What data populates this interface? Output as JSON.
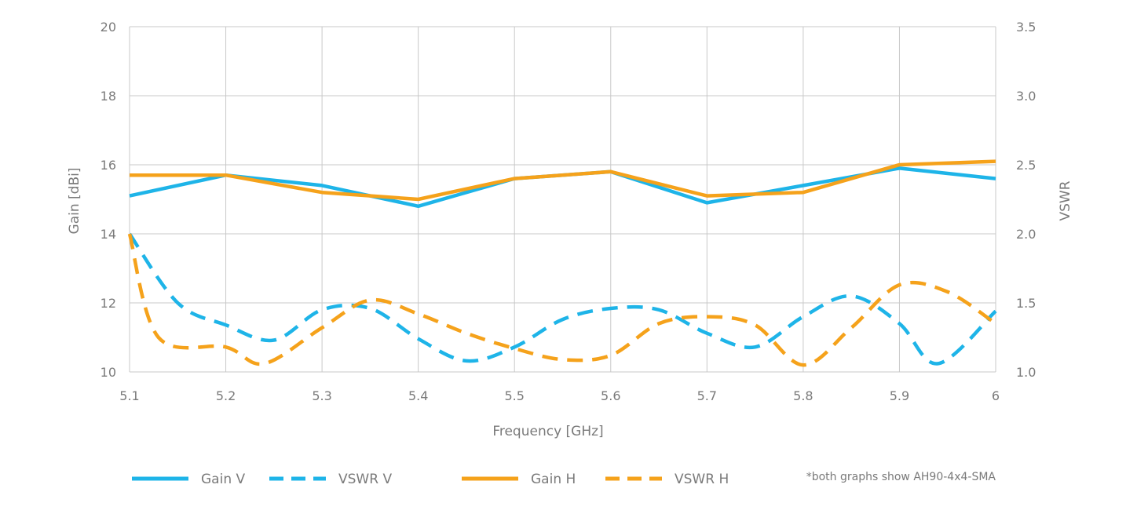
{
  "chart_data": {
    "type": "line",
    "x_ticks": [
      "5.1",
      "5.2",
      "5.3",
      "5.4",
      "5.5",
      "5.6",
      "5.7",
      "5.8",
      "5.9",
      "6"
    ],
    "xlim": [
      5.1,
      6.0
    ],
    "ylim_left": [
      10,
      20
    ],
    "ylim_right": [
      1.0,
      3.5
    ],
    "y_ticks_left": [
      "10",
      "12",
      "14",
      "16",
      "18",
      "20"
    ],
    "y_ticks_right": [
      "1.0",
      "1.5",
      "2.0",
      "2.5",
      "3.0",
      "3.5"
    ],
    "xlabel": "Frequency [GHz]",
    "ylabel_left": "Gain [dBi]",
    "ylabel_right": "VSWR",
    "grid": true,
    "legend_position": "bottom",
    "note": "*both graphs show AH90-4x4-SMA",
    "colors": {
      "blue": "#1eb4e8",
      "orange": "#f5a21b"
    },
    "series": [
      {
        "name": "Gain V",
        "axis": "left",
        "style": "solid",
        "color": "#1eb4e8",
        "x": [
          5.1,
          5.2,
          5.3,
          5.4,
          5.5,
          5.6,
          5.7,
          5.8,
          5.9,
          6.0
        ],
        "y": [
          15.1,
          15.7,
          15.4,
          14.8,
          15.6,
          15.8,
          14.9,
          15.4,
          15.9,
          15.6
        ]
      },
      {
        "name": "VSWR V",
        "axis": "right",
        "style": "dashed",
        "color": "#1eb4e8",
        "x": [
          5.1,
          5.15,
          5.2,
          5.25,
          5.3,
          5.35,
          5.4,
          5.45,
          5.5,
          5.55,
          5.6,
          5.65,
          5.7,
          5.75,
          5.8,
          5.85,
          5.9,
          5.94,
          6.0
        ],
        "y": [
          2.0,
          1.5,
          1.34,
          1.23,
          1.45,
          1.46,
          1.24,
          1.08,
          1.18,
          1.38,
          1.46,
          1.45,
          1.28,
          1.18,
          1.4,
          1.55,
          1.35,
          1.06,
          1.44
        ]
      },
      {
        "name": "Gain H",
        "axis": "left",
        "style": "solid",
        "color": "#f5a21b",
        "x": [
          5.1,
          5.2,
          5.3,
          5.4,
          5.5,
          5.6,
          5.7,
          5.8,
          5.9,
          6.0
        ],
        "y": [
          15.7,
          15.7,
          15.2,
          15.0,
          15.6,
          15.8,
          15.1,
          15.2,
          16.0,
          16.1
        ]
      },
      {
        "name": "VSWR H",
        "axis": "right",
        "style": "dashed",
        "color": "#f5a21b",
        "x": [
          5.1,
          5.13,
          5.2,
          5.24,
          5.3,
          5.35,
          5.4,
          5.45,
          5.5,
          5.55,
          5.6,
          5.65,
          5.7,
          5.75,
          5.8,
          5.85,
          5.9,
          5.95,
          6.0
        ],
        "y": [
          2.0,
          1.25,
          1.18,
          1.06,
          1.32,
          1.52,
          1.42,
          1.28,
          1.17,
          1.09,
          1.12,
          1.35,
          1.4,
          1.34,
          1.05,
          1.32,
          1.63,
          1.58,
          1.35
        ]
      }
    ]
  }
}
